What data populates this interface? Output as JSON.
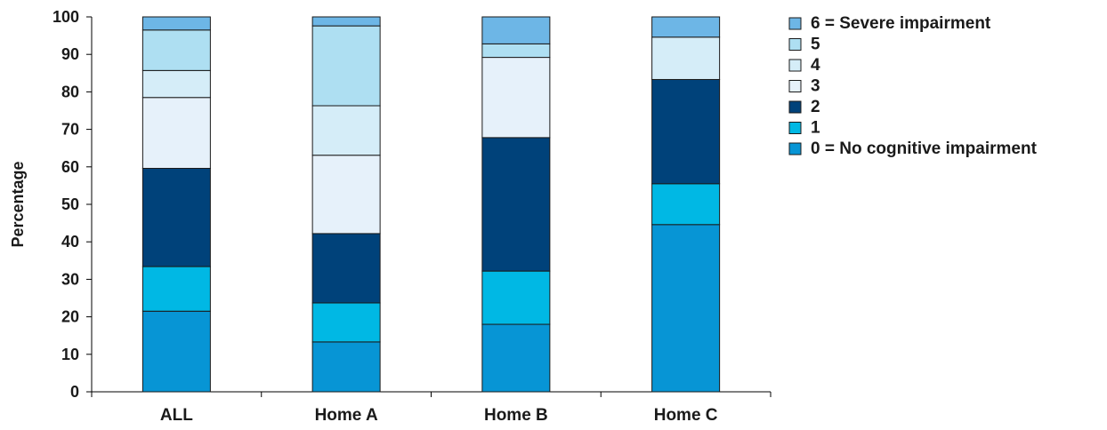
{
  "chart_data": {
    "type": "bar",
    "stacked": true,
    "categories": [
      "ALL",
      "Home A",
      "Home B",
      "Home C"
    ],
    "ylabel": "Percentage",
    "xlabel": "",
    "ylim": [
      0,
      100
    ],
    "yticks": [
      0,
      10,
      20,
      30,
      40,
      50,
      60,
      70,
      80,
      90,
      100
    ],
    "grid": false,
    "legend_position": "right",
    "series": [
      {
        "name": "0 = No cognitive impairment",
        "color": "#0795D5",
        "values": [
          21.5,
          13.3,
          18.0,
          44.6
        ]
      },
      {
        "name": "1",
        "color": "#00B8E4",
        "values": [
          11.9,
          10.4,
          14.2,
          10.9
        ]
      },
      {
        "name": "2",
        "color": "#00427A",
        "values": [
          26.2,
          18.5,
          35.6,
          27.8
        ]
      },
      {
        "name": "3",
        "color": "#E6F1FA",
        "values": [
          18.9,
          20.9,
          21.4,
          0.0
        ]
      },
      {
        "name": "4",
        "color": "#D5EDF8",
        "values": [
          7.2,
          13.2,
          0.0,
          11.3
        ]
      },
      {
        "name": "5",
        "color": "#AEDFF2",
        "values": [
          10.8,
          21.3,
          3.6,
          0.0
        ]
      },
      {
        "name": "6 = Severe impairment",
        "color": "#6DB6E6",
        "values": [
          3.5,
          2.4,
          7.2,
          5.4
        ]
      }
    ]
  }
}
